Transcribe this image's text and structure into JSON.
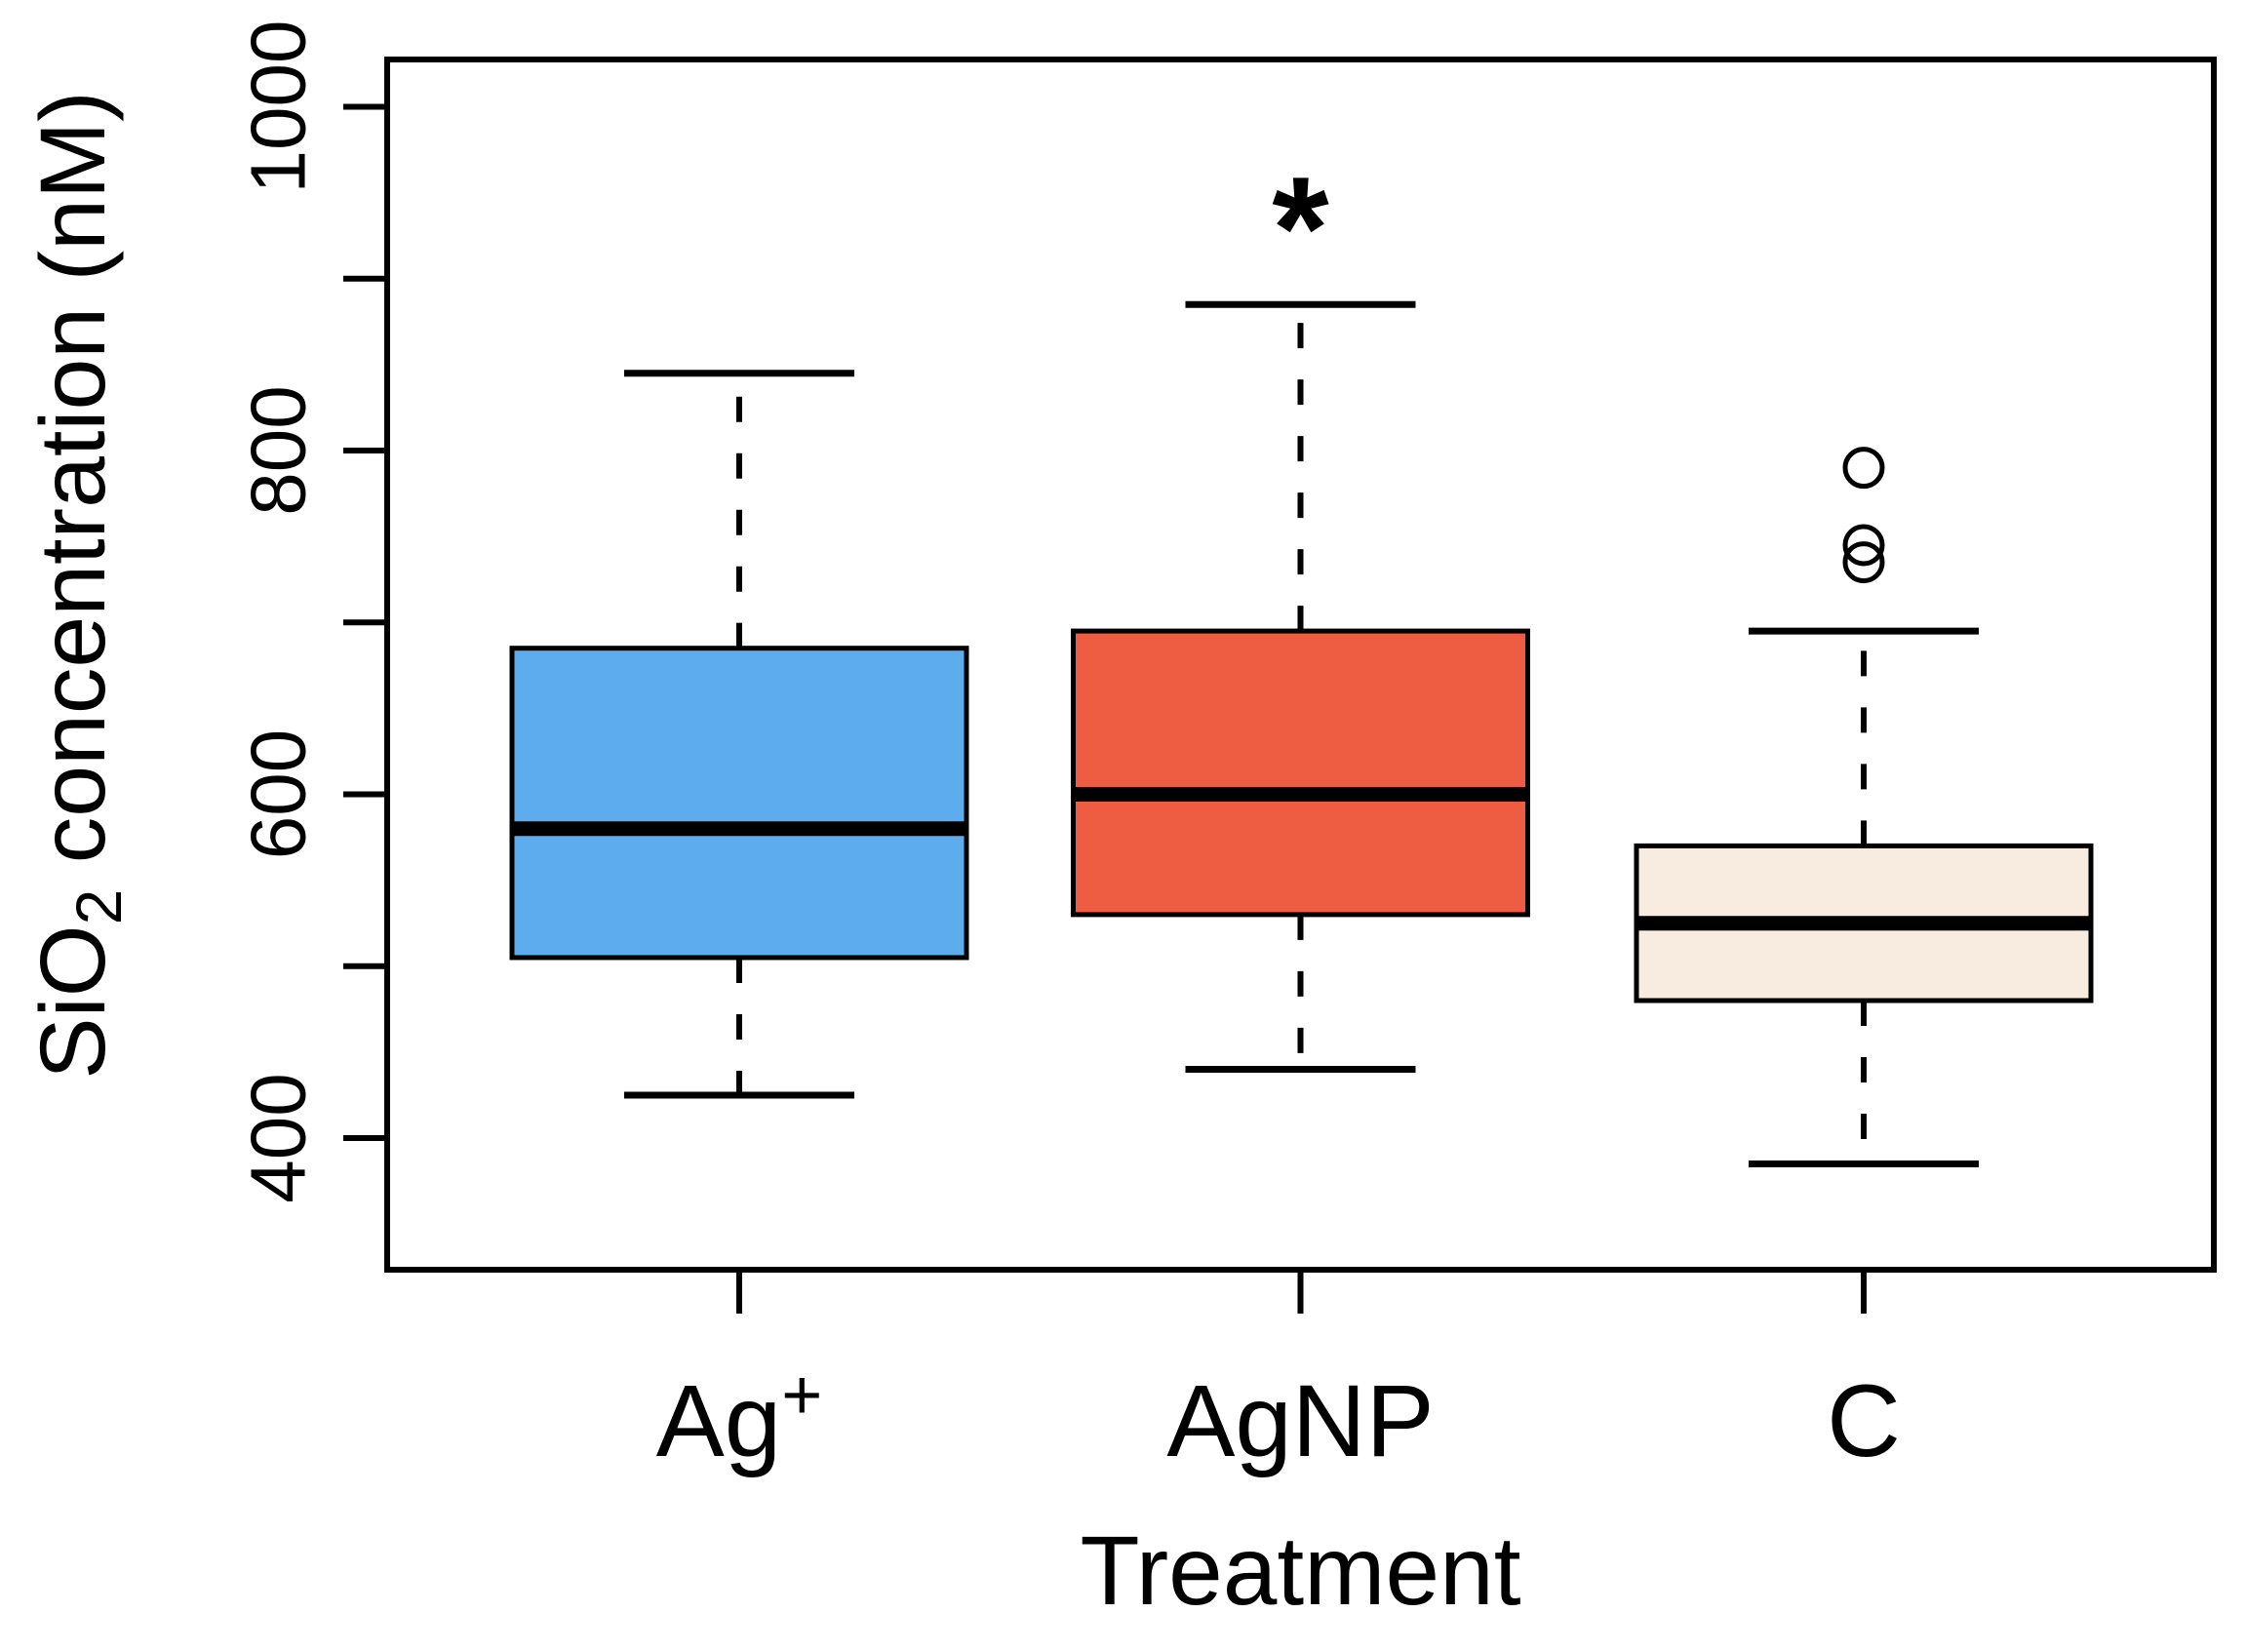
{
  "figure": {
    "background": "#ffffff",
    "y_axis": {
      "label_prefix": "SiO",
      "label_sub": "2",
      "label_suffix": " concentration (nM)",
      "tick_labels": [
        "400",
        "600",
        "800",
        "1000"
      ]
    },
    "x_axis": {
      "label": "Treatment"
    }
  },
  "chart_data": {
    "type": "boxplot",
    "title": "",
    "xlabel": "Treatment",
    "ylabel": "SiO2 concentration (nM)",
    "ylim": [
      323,
      1028
    ],
    "yticks_labeled": [
      400,
      600,
      800,
      1000
    ],
    "yticks_minor": [
      500,
      700,
      900
    ],
    "grid": false,
    "legend": null,
    "groups": [
      {
        "label": "Ag+",
        "label_base": "Ag",
        "label_sup": "+",
        "fill": "#5CACEE",
        "whisker_low": 425,
        "q1": 505,
        "median": 580,
        "q3": 685,
        "whisker_high": 845,
        "outliers": [],
        "annotation": ""
      },
      {
        "label": "AgNP",
        "label_base": "AgNP",
        "label_sup": "",
        "fill": "#EE5C42",
        "whisker_low": 440,
        "q1": 530,
        "median": 600,
        "q3": 695,
        "whisker_high": 885,
        "outliers": [],
        "annotation": "*",
        "annotation_value": 950
      },
      {
        "label": "C",
        "label_base": "C",
        "label_sup": "",
        "fill": "#F8ECE0",
        "whisker_low": 385,
        "q1": 480,
        "median": 525,
        "q3": 570,
        "whisker_high": 695,
        "outliers": [
          790,
          745,
          735
        ],
        "annotation": ""
      }
    ]
  }
}
